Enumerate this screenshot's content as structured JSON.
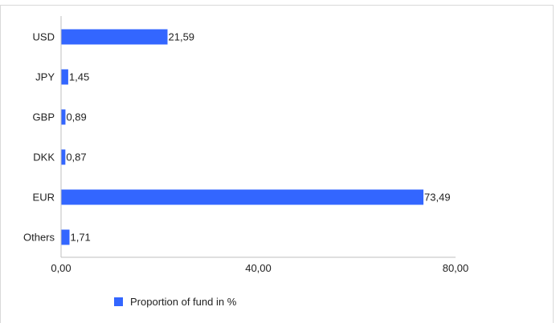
{
  "chart_data": {
    "type": "bar",
    "orientation": "horizontal",
    "categories": [
      "USD",
      "JPY",
      "GBP",
      "DKK",
      "EUR",
      "Others"
    ],
    "series": [
      {
        "name": "Proportion of fund in %",
        "values": [
          21.59,
          1.45,
          0.89,
          0.87,
          73.49,
          1.71
        ],
        "value_labels": [
          "21,59",
          "1,45",
          "0,89",
          "0,87",
          "73,49",
          "1,71"
        ]
      }
    ],
    "xlim": [
      0,
      80
    ],
    "x_ticks": [
      0,
      40,
      80
    ],
    "x_tick_labels": [
      "0,00",
      "40,00",
      "80,00"
    ],
    "grid": false,
    "legend_position": "bottom",
    "colors": {
      "bar": "#3366ff",
      "axis": "#bfbfbf"
    }
  }
}
